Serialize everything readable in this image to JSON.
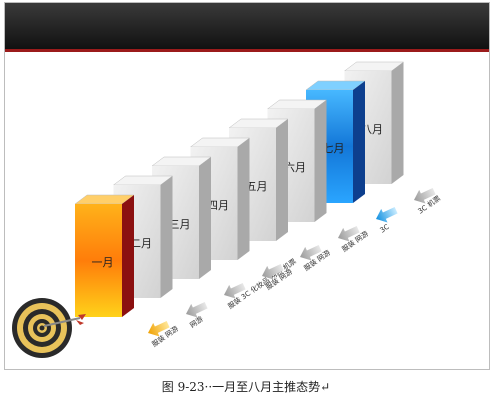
{
  "months": [
    {
      "label": "一月",
      "color": "orange"
    },
    {
      "label": "二月",
      "color": "gray"
    },
    {
      "label": "三月",
      "color": "gray"
    },
    {
      "label": "四月",
      "color": "gray"
    },
    {
      "label": "五月",
      "color": "gray"
    },
    {
      "label": "六月",
      "color": "gray"
    },
    {
      "label": "七月",
      "color": "blue"
    },
    {
      "label": "八月",
      "color": "gray"
    }
  ],
  "trend_labels": [
    {
      "label": "服装 网游",
      "arrow": "orange"
    },
    {
      "label": "网游",
      "arrow": "gray"
    },
    {
      "label": "服装 3C 化妆品 网游 机票",
      "arrow": "gray"
    },
    {
      "label": "服装 网游",
      "arrow": "gray"
    },
    {
      "label": "服装 网游",
      "arrow": "gray"
    },
    {
      "label": "服装 网游",
      "arrow": "gray"
    },
    {
      "label": "3C",
      "arrow": "blue"
    },
    {
      "label": "3C 机票",
      "arrow": "gray"
    }
  ],
  "caption": "图 9-23··一月至八月主推态势↵",
  "colors": {
    "orange_front": "#ff9a10",
    "blue_front": "#1e90e8",
    "gray_front": "#dcdcdc",
    "dark_red_side": "#8b1010",
    "header": "#1a1a1a"
  }
}
